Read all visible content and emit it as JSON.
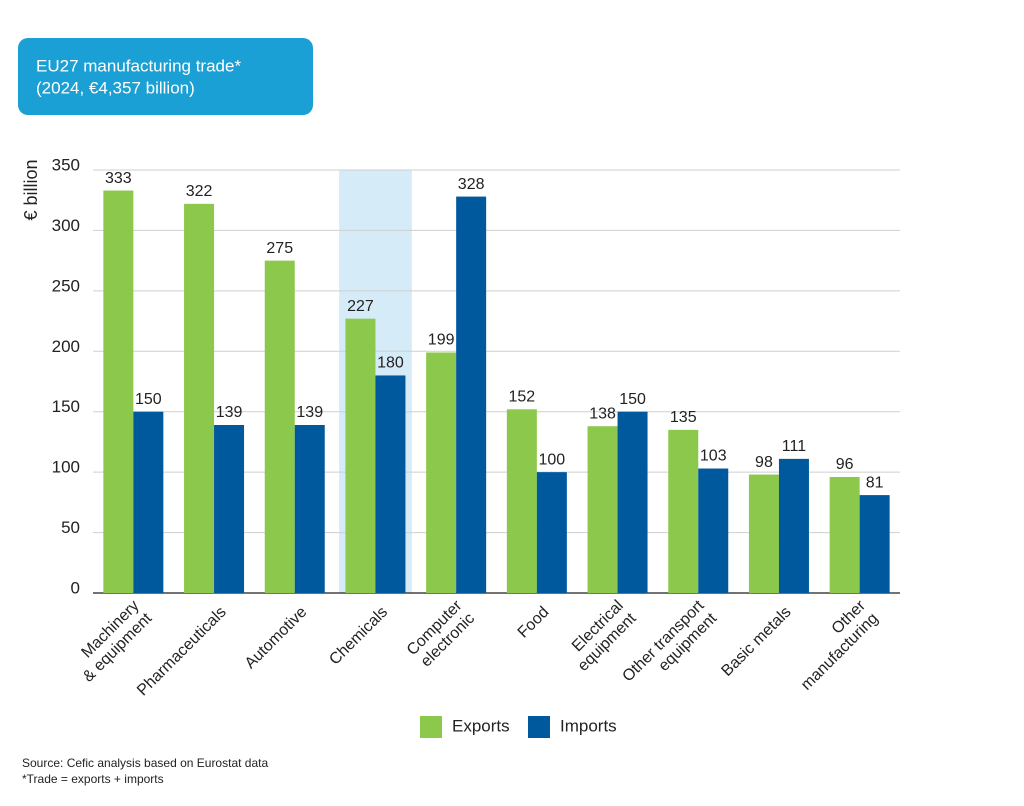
{
  "chart_data": {
    "type": "bar",
    "title": "EU27 manufacturing trade*",
    "subtitle": "(2024, €4,357 billion)",
    "y_label": "€ billion",
    "categories": [
      "Machinery\n& equipment",
      "Pharmaceuticals",
      "Automotive",
      "Chemicals",
      "Computer\nelectronic",
      "Food",
      "Electrical\nequipment",
      "Other transport\nequipment",
      "Basic metals",
      "Other\nmanufacturing"
    ],
    "series": [
      {
        "name": "Exports",
        "color": "#8cc84b",
        "values": [
          333,
          322,
          275,
          227,
          199,
          152,
          138,
          135,
          98,
          96
        ]
      },
      {
        "name": "Imports",
        "color": "#00599c",
        "values": [
          150,
          139,
          139,
          180,
          328,
          100,
          150,
          103,
          111,
          81
        ]
      }
    ],
    "ylim": [
      0,
      350
    ],
    "yticks": [
      0,
      50,
      100,
      150,
      200,
      250,
      300,
      350
    ],
    "grid": true,
    "highlight": "Chemicals",
    "highlight_color": "#d5ebf7",
    "legend": "bottom",
    "notes": [
      "Source: Cefic analysis based on Eurostat data",
      "*Trade = exports + imports"
    ]
  }
}
